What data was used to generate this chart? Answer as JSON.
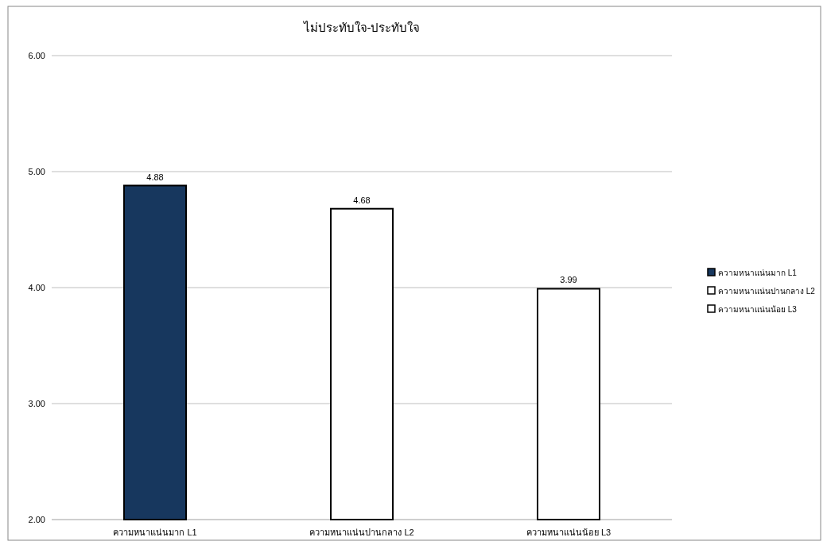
{
  "chart_data": {
    "type": "bar",
    "title": "ไม่ประทับใจ-ประทับใจ",
    "categories": [
      "ความหนาแน่นมาก L1",
      "ความหนาแน่นปานกลาง L2",
      "ความหนาแน่นน้อย L3"
    ],
    "series": [
      {
        "name": "ความหนาแน่นมาก L1",
        "color": "#17375e",
        "values": [
          4.88,
          null,
          null
        ]
      },
      {
        "name": "ความหนาแน่นปานกลาง L2",
        "color": "#ffffff",
        "values": [
          null,
          4.68,
          null
        ]
      },
      {
        "name": "ความหนาแน่นน้อย L3",
        "color": "#ffffff",
        "values": [
          null,
          null,
          3.99
        ]
      }
    ],
    "ylim": [
      2,
      6
    ],
    "yticks": [
      {
        "value": 2,
        "label": "2.00"
      },
      {
        "value": 3,
        "label": "3.00"
      },
      {
        "value": 4,
        "label": "4.00"
      },
      {
        "value": 5,
        "label": "5.00"
      },
      {
        "value": 6,
        "label": "6.00"
      }
    ],
    "grid": "y",
    "legend": "right",
    "data_labels": true
  }
}
